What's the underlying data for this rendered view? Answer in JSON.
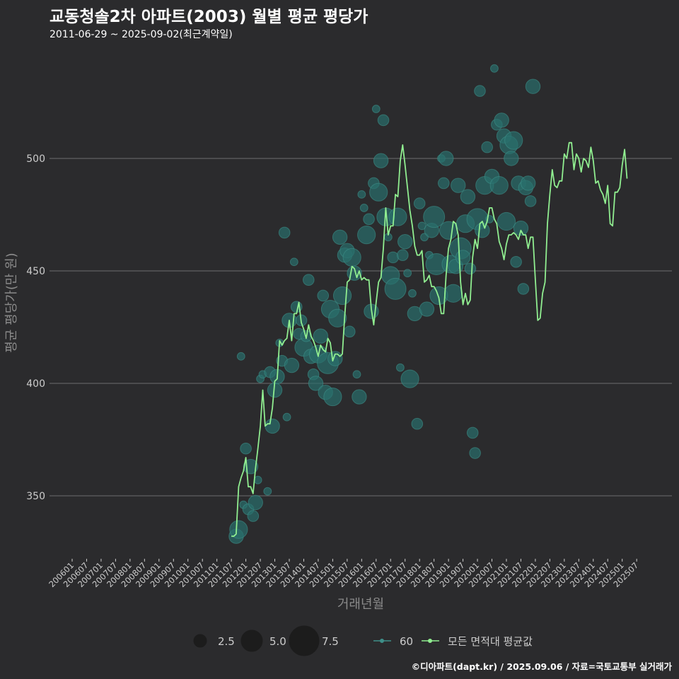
{
  "header": {
    "title": "교동청솔2차 아파트(2003) 월별 평균 평당가",
    "subtitle": "2011-06-29 ~ 2025-09-02(최근계약일)"
  },
  "footer": {
    "credit": "©디아파트(dapt.kr) / 2025.09.06 / 자료=국토교통부 실거래가"
  },
  "colors": {
    "background": "#2b2b2d",
    "grid": "#6e6e6e",
    "line": "#90ee90",
    "bubble": "#2a6f6c",
    "bubble_stroke": "#3e8f89",
    "axis_text": "#cccccc",
    "axis_title": "#8a8a8a"
  },
  "chart_data": {
    "type": "line+scatter",
    "xlabel": "거래년월",
    "ylabel": "평균 평당가(만 원)",
    "ylim": [
      322,
      550
    ],
    "yticks": [
      350,
      400,
      450,
      500
    ],
    "x_range": [
      "2006-01",
      "2025-09"
    ],
    "xticks": [
      "200601",
      "200607",
      "200701",
      "200707",
      "200801",
      "200807",
      "200901",
      "200907",
      "201001",
      "201007",
      "201101",
      "201107",
      "201201",
      "201207",
      "201301",
      "201307",
      "201401",
      "201407",
      "201501",
      "201507",
      "201601",
      "201607",
      "201701",
      "201707",
      "201801",
      "201807",
      "201901",
      "201907",
      "202001",
      "202007",
      "202101",
      "202107",
      "202201",
      "202207",
      "202301",
      "202307",
      "202401",
      "202407",
      "202501",
      "202507"
    ],
    "legend": {
      "size_title": "",
      "sizes": [
        {
          "label": "2.5",
          "value": 2.5
        },
        {
          "label": "5.0",
          "value": 5.0
        },
        {
          "label": "7.5",
          "value": 7.5
        }
      ],
      "series": [
        {
          "name": "60",
          "kind": "bubble"
        },
        {
          "name": "모든 면적대 평균값",
          "kind": "line"
        }
      ]
    },
    "line_series": {
      "name": "모든 면적대 평균값",
      "points": [
        [
          "2011-07",
          332
        ],
        [
          "2011-08",
          332
        ],
        [
          "2011-09",
          333
        ],
        [
          "2011-10",
          354
        ],
        [
          "2011-11",
          358
        ],
        [
          "2011-12",
          361
        ],
        [
          "2012-01",
          367
        ],
        [
          "2012-02",
          354
        ],
        [
          "2012-03",
          354
        ],
        [
          "2012-04",
          351
        ],
        [
          "2012-05",
          362
        ],
        [
          "2012-06",
          371
        ],
        [
          "2012-07",
          381
        ],
        [
          "2012-08",
          397
        ],
        [
          "2012-09",
          381
        ],
        [
          "2012-10",
          382
        ],
        [
          "2012-11",
          382
        ],
        [
          "2012-12",
          389
        ],
        [
          "2013-01",
          401
        ],
        [
          "2013-02",
          402
        ],
        [
          "2013-03",
          419
        ],
        [
          "2013-04",
          417
        ],
        [
          "2013-05",
          419
        ],
        [
          "2013-06",
          420
        ],
        [
          "2013-07",
          428
        ],
        [
          "2013-08",
          419
        ],
        [
          "2013-09",
          431
        ],
        [
          "2013-10",
          431
        ],
        [
          "2013-11",
          436
        ],
        [
          "2013-12",
          427
        ],
        [
          "2014-01",
          424
        ],
        [
          "2014-02",
          420
        ],
        [
          "2014-03",
          426
        ],
        [
          "2014-04",
          421
        ],
        [
          "2014-05",
          419
        ],
        [
          "2014-06",
          416
        ],
        [
          "2014-07",
          412
        ],
        [
          "2014-08",
          417
        ],
        [
          "2014-09",
          415
        ],
        [
          "2014-10",
          414
        ],
        [
          "2014-11",
          420
        ],
        [
          "2014-12",
          418
        ],
        [
          "2015-01",
          410
        ],
        [
          "2015-02",
          413
        ],
        [
          "2015-03",
          413
        ],
        [
          "2015-04",
          412
        ],
        [
          "2015-05",
          413
        ],
        [
          "2015-06",
          430
        ],
        [
          "2015-07",
          445
        ],
        [
          "2015-08",
          446
        ],
        [
          "2015-09",
          452
        ],
        [
          "2015-10",
          451
        ],
        [
          "2015-11",
          447
        ],
        [
          "2015-12",
          450
        ],
        [
          "2016-01",
          446
        ],
        [
          "2016-02",
          447
        ],
        [
          "2016-03",
          446
        ],
        [
          "2016-04",
          446
        ],
        [
          "2016-05",
          433
        ],
        [
          "2016-06",
          426
        ],
        [
          "2016-07",
          436
        ],
        [
          "2016-08",
          445
        ],
        [
          "2016-09",
          447
        ],
        [
          "2016-10",
          460
        ],
        [
          "2016-11",
          478
        ],
        [
          "2016-12",
          466
        ],
        [
          "2017-01",
          470
        ],
        [
          "2017-02",
          470
        ],
        [
          "2017-03",
          484
        ],
        [
          "2017-04",
          483
        ],
        [
          "2017-05",
          499
        ],
        [
          "2017-06",
          506
        ],
        [
          "2017-07",
          497
        ],
        [
          "2017-08",
          487
        ],
        [
          "2017-09",
          477
        ],
        [
          "2017-10",
          470
        ],
        [
          "2017-11",
          461
        ],
        [
          "2017-12",
          457
        ],
        [
          "2018-01",
          457
        ],
        [
          "2018-02",
          459
        ],
        [
          "2018-03",
          445
        ],
        [
          "2018-04",
          446
        ],
        [
          "2018-05",
          448
        ],
        [
          "2018-06",
          443
        ],
        [
          "2018-07",
          443
        ],
        [
          "2018-08",
          441
        ],
        [
          "2018-09",
          438
        ],
        [
          "2018-10",
          431
        ],
        [
          "2018-11",
          431
        ],
        [
          "2018-12",
          448
        ],
        [
          "2019-01",
          460
        ],
        [
          "2019-02",
          464
        ],
        [
          "2019-03",
          472
        ],
        [
          "2019-04",
          471
        ],
        [
          "2019-05",
          466
        ],
        [
          "2019-06",
          445
        ],
        [
          "2019-07",
          435
        ],
        [
          "2019-08",
          440
        ],
        [
          "2019-09",
          435
        ],
        [
          "2019-10",
          437
        ],
        [
          "2019-11",
          456
        ],
        [
          "2019-12",
          464
        ],
        [
          "2020-01",
          460
        ],
        [
          "2020-02",
          471
        ],
        [
          "2020-03",
          472
        ],
        [
          "2020-04",
          469
        ],
        [
          "2020-05",
          472
        ],
        [
          "2020-06",
          478
        ],
        [
          "2020-07",
          478
        ],
        [
          "2020-08",
          473
        ],
        [
          "2020-09",
          471
        ],
        [
          "2020-10",
          463
        ],
        [
          "2020-11",
          460
        ],
        [
          "2020-12",
          455
        ],
        [
          "2021-01",
          462
        ],
        [
          "2021-02",
          466
        ],
        [
          "2021-03",
          466
        ],
        [
          "2021-04",
          467
        ],
        [
          "2021-05",
          466
        ],
        [
          "2021-06",
          464
        ],
        [
          "2021-07",
          468
        ],
        [
          "2021-08",
          466
        ],
        [
          "2021-09",
          466
        ],
        [
          "2021-10",
          460
        ],
        [
          "2021-11",
          465
        ],
        [
          "2021-12",
          465
        ],
        [
          "2022-01",
          446
        ],
        [
          "2022-02",
          428
        ],
        [
          "2022-03",
          429
        ],
        [
          "2022-04",
          440
        ],
        [
          "2022-05",
          445
        ],
        [
          "2022-06",
          471
        ],
        [
          "2022-07",
          484
        ],
        [
          "2022-08",
          495
        ],
        [
          "2022-09",
          488
        ],
        [
          "2022-10",
          487
        ],
        [
          "2022-11",
          490
        ],
        [
          "2022-12",
          490
        ],
        [
          "2023-01",
          502
        ],
        [
          "2023-02",
          500
        ],
        [
          "2023-03",
          507
        ],
        [
          "2023-04",
          507
        ],
        [
          "2023-05",
          495
        ],
        [
          "2023-06",
          502
        ],
        [
          "2023-07",
          500
        ],
        [
          "2023-08",
          494
        ],
        [
          "2023-09",
          500
        ],
        [
          "2023-10",
          499
        ],
        [
          "2023-11",
          496
        ],
        [
          "2023-12",
          505
        ],
        [
          "2024-01",
          499
        ],
        [
          "2024-02",
          489
        ],
        [
          "2024-03",
          490
        ],
        [
          "2024-04",
          486
        ],
        [
          "2024-05",
          484
        ],
        [
          "2024-06",
          480
        ],
        [
          "2024-07",
          488
        ],
        [
          "2024-08",
          471
        ],
        [
          "2024-09",
          470
        ],
        [
          "2024-10",
          485
        ],
        [
          "2024-11",
          485
        ],
        [
          "2024-12",
          487
        ],
        [
          "2025-01",
          497
        ],
        [
          "2025-02",
          504
        ],
        [
          "2025-03",
          491
        ]
      ]
    },
    "bubbles": {
      "series_name": "60",
      "points": [
        [
          "2011-09",
          332,
          3
        ],
        [
          "2011-10",
          335,
          4
        ],
        [
          "2011-11",
          412,
          1
        ],
        [
          "2011-12",
          346,
          1
        ],
        [
          "2012-01",
          371,
          2
        ],
        [
          "2012-02",
          344,
          2
        ],
        [
          "2012-03",
          363,
          3
        ],
        [
          "2012-04",
          341,
          2
        ],
        [
          "2012-05",
          347,
          3
        ],
        [
          "2012-06",
          357,
          1
        ],
        [
          "2012-07",
          402,
          1
        ],
        [
          "2012-08",
          404,
          1
        ],
        [
          "2012-10",
          352,
          1
        ],
        [
          "2012-11",
          405,
          2
        ],
        [
          "2012-12",
          381,
          3
        ],
        [
          "2013-01",
          397,
          3
        ],
        [
          "2013-02",
          403,
          3
        ],
        [
          "2013-03",
          418,
          1
        ],
        [
          "2013-04",
          410,
          2
        ],
        [
          "2013-05",
          467,
          2
        ],
        [
          "2013-06",
          385,
          1
        ],
        [
          "2013-07",
          428,
          3
        ],
        [
          "2013-08",
          408,
          3
        ],
        [
          "2013-09",
          454,
          1
        ],
        [
          "2013-10",
          434,
          2
        ],
        [
          "2013-11",
          422,
          2
        ],
        [
          "2013-12",
          428,
          2
        ],
        [
          "2014-01",
          416,
          4
        ],
        [
          "2014-02",
          421,
          2
        ],
        [
          "2014-03",
          446,
          2
        ],
        [
          "2014-04",
          412,
          3
        ],
        [
          "2014-05",
          404,
          2
        ],
        [
          "2014-06",
          400,
          3
        ],
        [
          "2014-07",
          413,
          4
        ],
        [
          "2014-08",
          421,
          3
        ],
        [
          "2014-09",
          439,
          2
        ],
        [
          "2014-10",
          396,
          3
        ],
        [
          "2014-11",
          409,
          5
        ],
        [
          "2014-12",
          433,
          4
        ],
        [
          "2015-01",
          394,
          4
        ],
        [
          "2015-02",
          411,
          3
        ],
        [
          "2015-03",
          429,
          4
        ],
        [
          "2015-04",
          465,
          3
        ],
        [
          "2015-05",
          439,
          4
        ],
        [
          "2015-06",
          457,
          3
        ],
        [
          "2015-07",
          459,
          3
        ],
        [
          "2015-08",
          423,
          2
        ],
        [
          "2015-09",
          456,
          4
        ],
        [
          "2015-10",
          449,
          3
        ],
        [
          "2015-11",
          404,
          1
        ],
        [
          "2015-12",
          394,
          3
        ],
        [
          "2016-01",
          484,
          1
        ],
        [
          "2016-02",
          478,
          1
        ],
        [
          "2016-03",
          466,
          4
        ],
        [
          "2016-04",
          473,
          2
        ],
        [
          "2016-05",
          432,
          3
        ],
        [
          "2016-06",
          489,
          2
        ],
        [
          "2016-07",
          522,
          1
        ],
        [
          "2016-08",
          485,
          4
        ],
        [
          "2016-09",
          499,
          3
        ],
        [
          "2016-10",
          517,
          2
        ],
        [
          "2016-11",
          474,
          4
        ],
        [
          "2016-12",
          465,
          1
        ],
        [
          "2017-01",
          448,
          4
        ],
        [
          "2017-02",
          456,
          2
        ],
        [
          "2017-03",
          442,
          5
        ],
        [
          "2017-04",
          474,
          4
        ],
        [
          "2017-05",
          407,
          1
        ],
        [
          "2017-06",
          457,
          2
        ],
        [
          "2017-07",
          463,
          3
        ],
        [
          "2017-08",
          449,
          1
        ],
        [
          "2017-09",
          402,
          4
        ],
        [
          "2017-10",
          440,
          1
        ],
        [
          "2017-11",
          431,
          3
        ],
        [
          "2017-12",
          382,
          2
        ],
        [
          "2018-01",
          480,
          2
        ],
        [
          "2018-02",
          470,
          1
        ],
        [
          "2018-03",
          465,
          1
        ],
        [
          "2018-04",
          433,
          3
        ],
        [
          "2018-05",
          457,
          1
        ],
        [
          "2018-06",
          468,
          3
        ],
        [
          "2018-07",
          474,
          5
        ],
        [
          "2018-08",
          453,
          5
        ],
        [
          "2018-09",
          439,
          4
        ],
        [
          "2018-10",
          500,
          1
        ],
        [
          "2018-11",
          489,
          2
        ],
        [
          "2018-12",
          500,
          3
        ],
        [
          "2019-01",
          468,
          4
        ],
        [
          "2019-02",
          453,
          4
        ],
        [
          "2019-03",
          440,
          4
        ],
        [
          "2019-04",
          452,
          3
        ],
        [
          "2019-05",
          488,
          3
        ],
        [
          "2019-06",
          460,
          5
        ],
        [
          "2019-07",
          456,
          3
        ],
        [
          "2019-08",
          471,
          4
        ],
        [
          "2019-09",
          483,
          3
        ],
        [
          "2019-10",
          451,
          2
        ],
        [
          "2019-11",
          378,
          2
        ],
        [
          "2019-12",
          369,
          2
        ],
        [
          "2020-01",
          473,
          5
        ],
        [
          "2020-02",
          530,
          2
        ],
        [
          "2020-03",
          468,
          3
        ],
        [
          "2020-04",
          488,
          4
        ],
        [
          "2020-05",
          505,
          2
        ],
        [
          "2020-06",
          473,
          1
        ],
        [
          "2020-07",
          492,
          3
        ],
        [
          "2020-08",
          540,
          1
        ],
        [
          "2020-09",
          515,
          2
        ],
        [
          "2020-10",
          488,
          4
        ],
        [
          "2020-11",
          517,
          3
        ],
        [
          "2020-12",
          510,
          3
        ],
        [
          "2021-01",
          472,
          4
        ],
        [
          "2021-02",
          506,
          4
        ],
        [
          "2021-03",
          500,
          3
        ],
        [
          "2021-04",
          508,
          4
        ],
        [
          "2021-05",
          454,
          2
        ],
        [
          "2021-06",
          489,
          3
        ],
        [
          "2021-07",
          469,
          3
        ],
        [
          "2021-08",
          442,
          2
        ],
        [
          "2021-09",
          487,
          3
        ],
        [
          "2021-10",
          489,
          3
        ],
        [
          "2021-11",
          481,
          2
        ],
        [
          "2021-12",
          532,
          3
        ]
      ]
    }
  }
}
